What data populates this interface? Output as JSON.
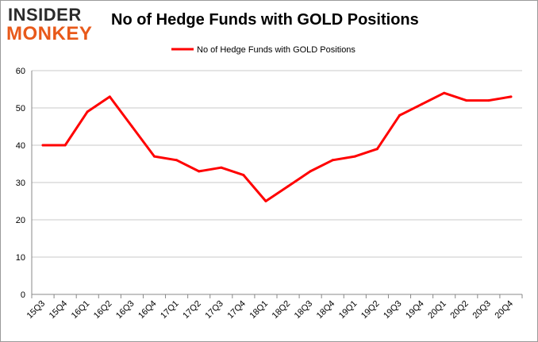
{
  "logo": {
    "line1": "INSIDER",
    "line2": "MONKEY"
  },
  "colors": {
    "series": "#ff0000",
    "grid": "#c8c8c8",
    "logo_accent": "#e8591a"
  },
  "chart_data": {
    "type": "line",
    "title": "No of Hedge Funds with GOLD Positions",
    "xlabel": "",
    "ylabel": "",
    "ylim": [
      0,
      60
    ],
    "yticks": [
      0,
      10,
      20,
      30,
      40,
      50,
      60
    ],
    "grid": true,
    "legend_position": "top-center",
    "categories": [
      "15Q3",
      "15Q4",
      "16Q1",
      "16Q2",
      "16Q3",
      "16Q4",
      "17Q1",
      "17Q2",
      "17Q3",
      "17Q4",
      "18Q1",
      "18Q2",
      "18Q3",
      "18Q4",
      "19Q1",
      "19Q2",
      "19Q3",
      "19Q4",
      "20Q1",
      "20Q2",
      "20Q3",
      "20Q4"
    ],
    "series": [
      {
        "name": "No of Hedge Funds with GOLD Positions",
        "values": [
          40,
          40,
          49,
          53,
          45,
          37,
          36,
          33,
          34,
          32,
          25,
          29,
          33,
          36,
          37,
          39,
          48,
          51,
          54,
          52,
          52,
          53
        ]
      }
    ]
  }
}
